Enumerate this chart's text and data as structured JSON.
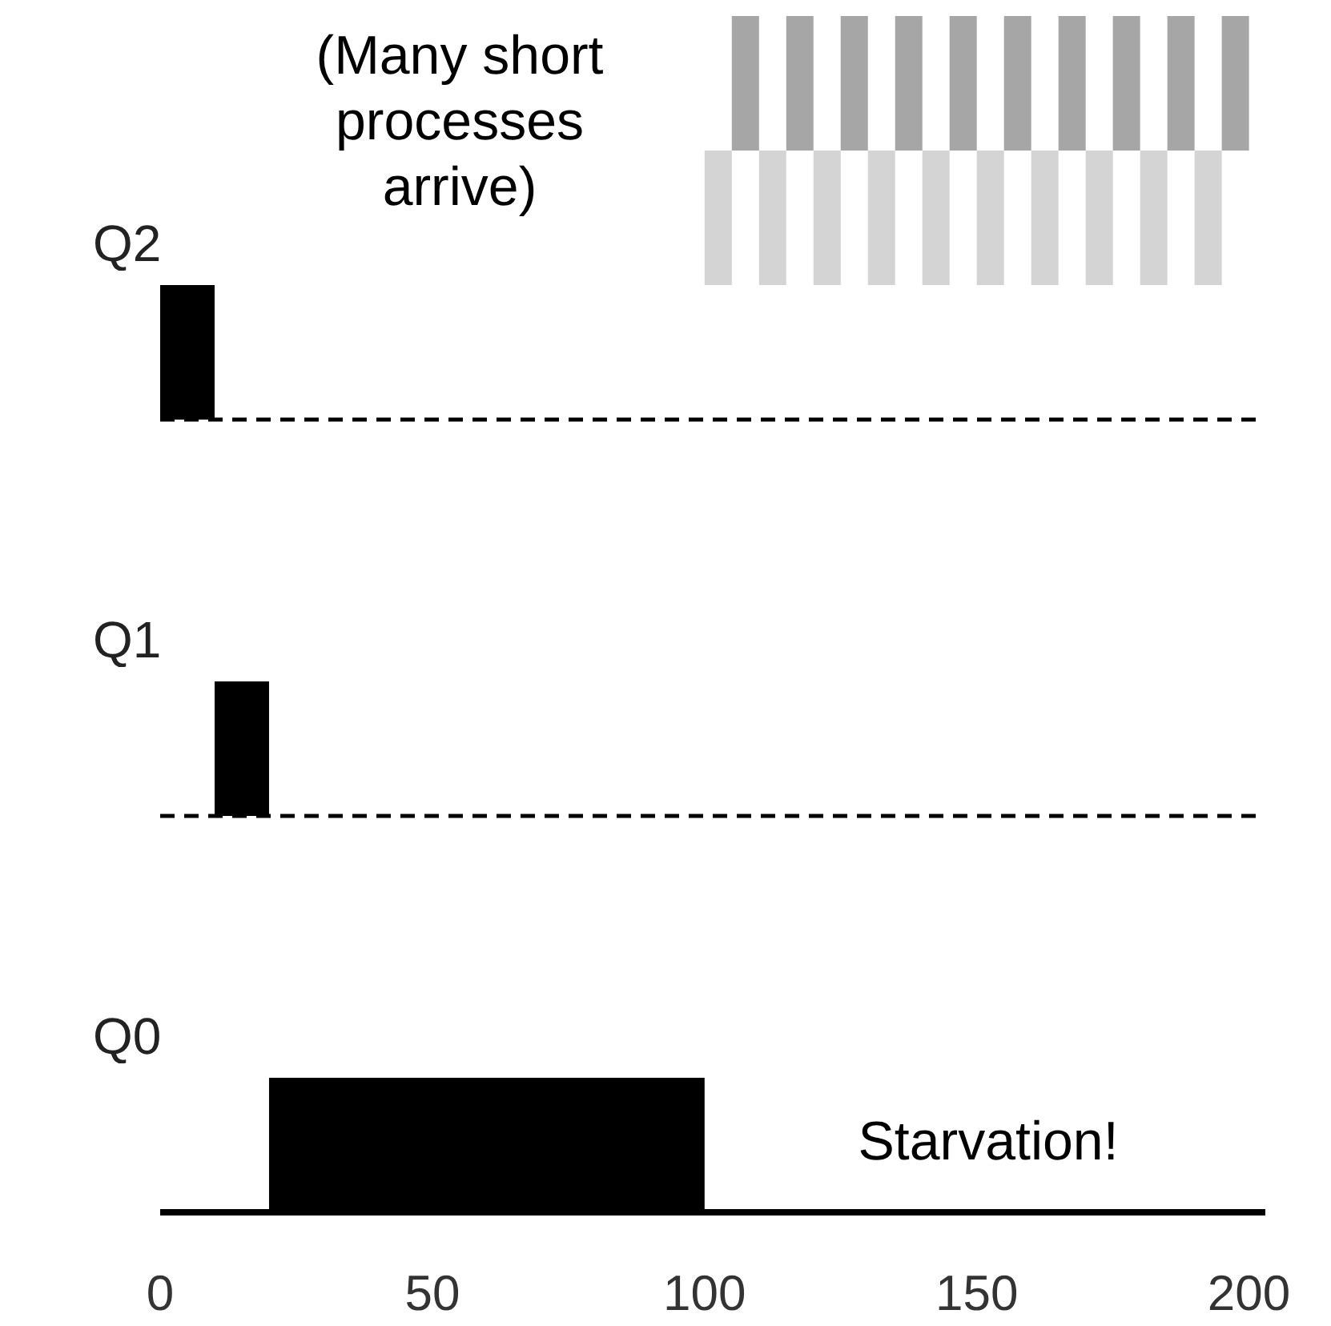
{
  "chart_data": {
    "type": "bar",
    "orientation": "horizontal",
    "categories": [
      "Q2",
      "Q1",
      "Q0"
    ],
    "xlim": [
      0,
      203
    ],
    "xticks": [
      0,
      50,
      100,
      150,
      200
    ],
    "series": [
      {
        "color": "#000000",
        "values": [
          10,
          10,
          80
        ],
        "base": [
          0,
          10,
          20
        ]
      },
      {
        "color": "#d4d4d4",
        "values": [
          5,
          null,
          null
        ],
        "base": [
          100,
          null,
          null
        ]
      },
      {
        "color": "#a6a6a6",
        "values": [
          5,
          null,
          null
        ],
        "base": [
          105,
          null,
          null
        ]
      },
      {
        "color": "#d4d4d4",
        "values": [
          5,
          null,
          null
        ],
        "base": [
          110,
          null,
          null
        ]
      },
      {
        "color": "#a6a6a6",
        "values": [
          5,
          null,
          null
        ],
        "base": [
          115,
          null,
          null
        ]
      },
      {
        "color": "#d4d4d4",
        "values": [
          5,
          null,
          null
        ],
        "base": [
          120,
          null,
          null
        ]
      },
      {
        "color": "#a6a6a6",
        "values": [
          5,
          null,
          null
        ],
        "base": [
          125,
          null,
          null
        ]
      },
      {
        "color": "#d4d4d4",
        "values": [
          5,
          null,
          null
        ],
        "base": [
          130,
          null,
          null
        ]
      },
      {
        "color": "#a6a6a6",
        "values": [
          5,
          null,
          null
        ],
        "base": [
          135,
          null,
          null
        ]
      },
      {
        "color": "#d4d4d4",
        "values": [
          5,
          null,
          null
        ],
        "base": [
          140,
          null,
          null
        ]
      },
      {
        "color": "#a6a6a6",
        "values": [
          5,
          null,
          null
        ],
        "base": [
          145,
          null,
          null
        ]
      },
      {
        "color": "#d4d4d4",
        "values": [
          5,
          null,
          null
        ],
        "base": [
          150,
          null,
          null
        ]
      },
      {
        "color": "#a6a6a6",
        "values": [
          5,
          null,
          null
        ],
        "base": [
          155,
          null,
          null
        ]
      },
      {
        "color": "#d4d4d4",
        "values": [
          5,
          null,
          null
        ],
        "base": [
          160,
          null,
          null
        ]
      },
      {
        "color": "#a6a6a6",
        "values": [
          5,
          null,
          null
        ],
        "base": [
          165,
          null,
          null
        ]
      },
      {
        "color": "#d4d4d4",
        "values": [
          5,
          null,
          null
        ],
        "base": [
          170,
          null,
          null
        ]
      },
      {
        "color": "#a6a6a6",
        "values": [
          5,
          null,
          null
        ],
        "base": [
          175,
          null,
          null
        ]
      },
      {
        "color": "#d4d4d4",
        "values": [
          5,
          null,
          null
        ],
        "base": [
          180,
          null,
          null
        ]
      },
      {
        "color": "#a6a6a6",
        "values": [
          5,
          null,
          null
        ],
        "base": [
          185,
          null,
          null
        ]
      },
      {
        "color": "#d4d4d4",
        "values": [
          5,
          null,
          null
        ],
        "base": [
          190,
          null,
          null
        ]
      },
      {
        "color": "#a6a6a6",
        "values": [
          5,
          null,
          null
        ],
        "base": [
          195,
          null,
          null
        ]
      }
    ],
    "ref_lines": [
      {
        "axis": "y",
        "value": "Q2",
        "line_style": "dashed",
        "color": "#000000"
      },
      {
        "axis": "y",
        "value": "Q1",
        "line_style": "dashed",
        "color": "#000000"
      }
    ],
    "annotations": [
      "(Many short processes arrive)",
      "Starvation!"
    ]
  }
}
